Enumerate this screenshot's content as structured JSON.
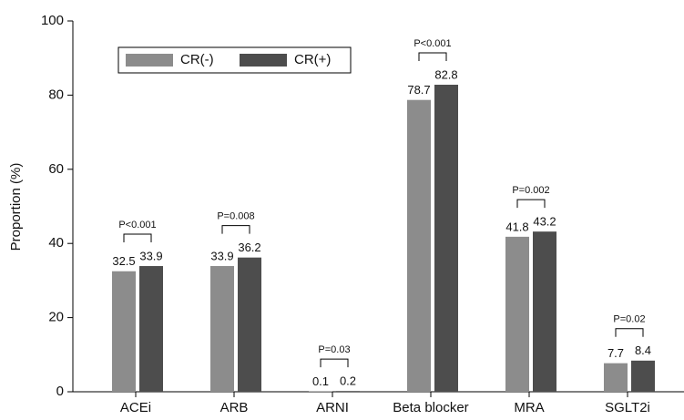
{
  "chart_data": {
    "type": "grouped_bar",
    "y_label": "Proportion (%)",
    "categories": [
      "ACEi",
      "ARB",
      "ARNI",
      "Beta blocker",
      "MRA",
      "SGLT2i"
    ],
    "series": [
      {
        "name": "CR(-)",
        "color": "#8c8c8c",
        "values": [
          32.5,
          33.9,
          0.1,
          78.7,
          41.8,
          7.7
        ]
      },
      {
        "name": "CR(+)",
        "color": "#4d4d4d",
        "values": [
          33.9,
          36.2,
          0.2,
          82.8,
          43.2,
          8.4
        ]
      }
    ],
    "p_values": [
      "P<0.001",
      "P=0.008",
      "P=0.03",
      "P<0.001",
      "P=0.002",
      "P=0.02"
    ],
    "ylim": [
      0,
      100
    ],
    "yticks": [
      0,
      20,
      40,
      60,
      80,
      100
    ],
    "legend": "top-left",
    "grid": false
  }
}
